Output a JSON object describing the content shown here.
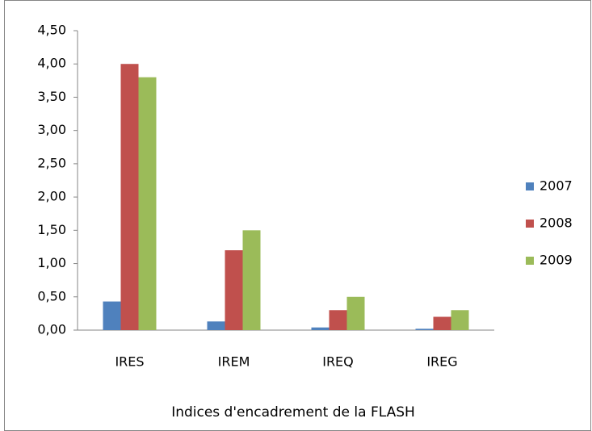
{
  "chart_data": {
    "type": "bar",
    "x_label": "Indices d'encadrement de la FLASH",
    "categories": [
      "IRES",
      "IREM",
      "IREQ",
      "IREG"
    ],
    "series": [
      {
        "name": "2007",
        "color": "#4f81bd",
        "values": [
          0.43,
          0.13,
          0.04,
          0.02
        ]
      },
      {
        "name": "2008",
        "color": "#c0504d",
        "values": [
          4.0,
          1.2,
          0.3,
          0.2
        ]
      },
      {
        "name": "2009",
        "color": "#9bbb59",
        "values": [
          3.8,
          1.5,
          0.5,
          0.3
        ]
      }
    ],
    "ylim": [
      0,
      4.5
    ],
    "yticks": [
      {
        "value": 0,
        "label": "0,00"
      },
      {
        "value": 0.5,
        "label": "0,50"
      },
      {
        "value": 1,
        "label": "1,00"
      },
      {
        "value": 1.5,
        "label": "1,50"
      },
      {
        "value": 2,
        "label": "2,00"
      },
      {
        "value": 2.5,
        "label": "2,50"
      },
      {
        "value": 3,
        "label": "3,00"
      },
      {
        "value": 3.5,
        "label": "3,50"
      },
      {
        "value": 4,
        "label": "4,00"
      },
      {
        "value": 4.5,
        "label": "4,50"
      }
    ],
    "grid": false,
    "legend": "right"
  }
}
